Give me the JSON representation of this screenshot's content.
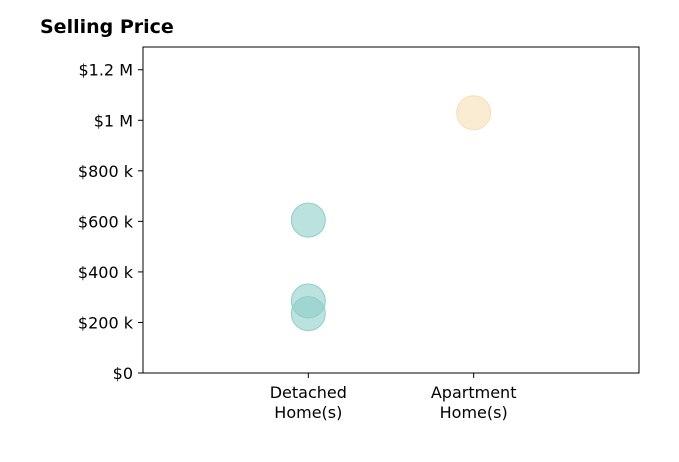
{
  "chart_data": {
    "type": "scatter",
    "title": "Selling Price",
    "xlabel": "",
    "ylabel": "",
    "categories": [
      {
        "line1": "Detached",
        "line2": "Home(s)"
      },
      {
        "line1": "Apartment",
        "line2": "Home(s)"
      }
    ],
    "yticks": [
      {
        "value": 0,
        "label": "$0"
      },
      {
        "value": 200000,
        "label": "$200 k"
      },
      {
        "value": 400000,
        "label": "$400 k"
      },
      {
        "value": 600000,
        "label": "$600 k"
      },
      {
        "value": 800000,
        "label": "$800 k"
      },
      {
        "value": 1000000,
        "label": "$1 M"
      },
      {
        "value": 1200000,
        "label": "$1.2 M"
      }
    ],
    "ylim": [
      0,
      1290000
    ],
    "xlim": [
      -1,
      2
    ],
    "grid": false,
    "series": [
      {
        "color": "#8ecfc9",
        "points": [
          {
            "x": "Detached Home(s)",
            "y": 605000
          },
          {
            "x": "Detached Home(s)",
            "y": 285000
          },
          {
            "x": "Detached Home(s)",
            "y": 235000
          }
        ]
      },
      {
        "color": "#f5dfb5",
        "points": [
          {
            "x": "Apartment Home(s)",
            "y": 1030000
          }
        ]
      }
    ]
  }
}
